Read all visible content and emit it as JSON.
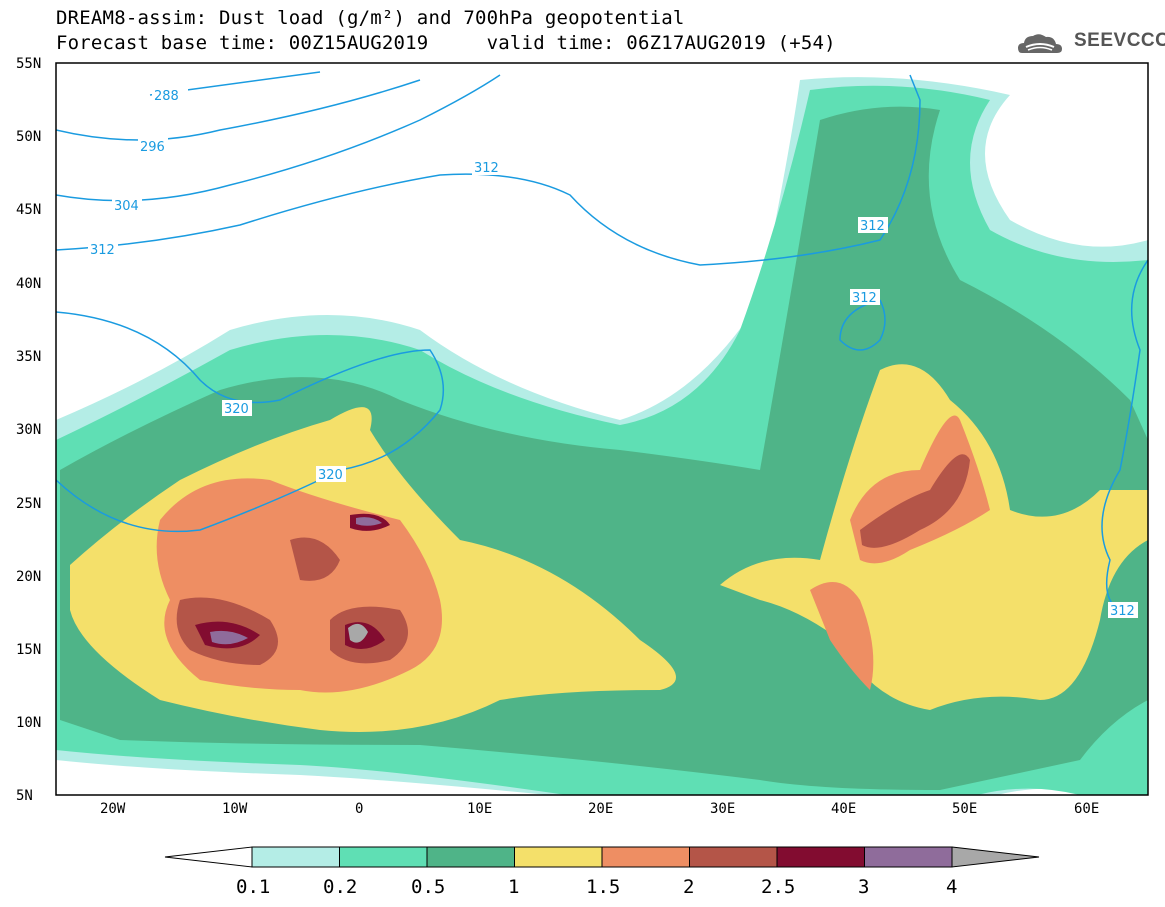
{
  "header": {
    "title_line1": "DREAM8-assim: Dust load (g/m²) and 700hPa geopotential",
    "title_line2": "Forecast base time: 00Z15AUG2019     valid time: 06Z17AUG2019 (+54)",
    "logo_text": "SEEVCCC"
  },
  "map": {
    "lon_range": [
      -25,
      65
    ],
    "lat_range": [
      5,
      55
    ],
    "lon_ticks": [
      "20W",
      "10W",
      "0",
      "10E",
      "20E",
      "30E",
      "40E",
      "50E",
      "60E"
    ],
    "lat_ticks": [
      "55N",
      "50N",
      "45N",
      "40N",
      "35N",
      "30N",
      "25N",
      "20N",
      "15N",
      "10N",
      "5N"
    ],
    "geopotential_labels": [
      "288",
      "296",
      "304",
      "312",
      "320",
      "312",
      "312",
      "312",
      "320",
      "312"
    ]
  },
  "legend": {
    "levels": [
      "0.1",
      "0.2",
      "0.5",
      "1",
      "1.5",
      "2",
      "2.5",
      "3",
      "4"
    ],
    "colors": [
      "#b4ede6",
      "#5fdfb4",
      "#4fb488",
      "#f4e06a",
      "#ee8e63",
      "#b45548",
      "#820c30",
      "#8f6c9b",
      "#a8a8a8"
    ]
  }
}
